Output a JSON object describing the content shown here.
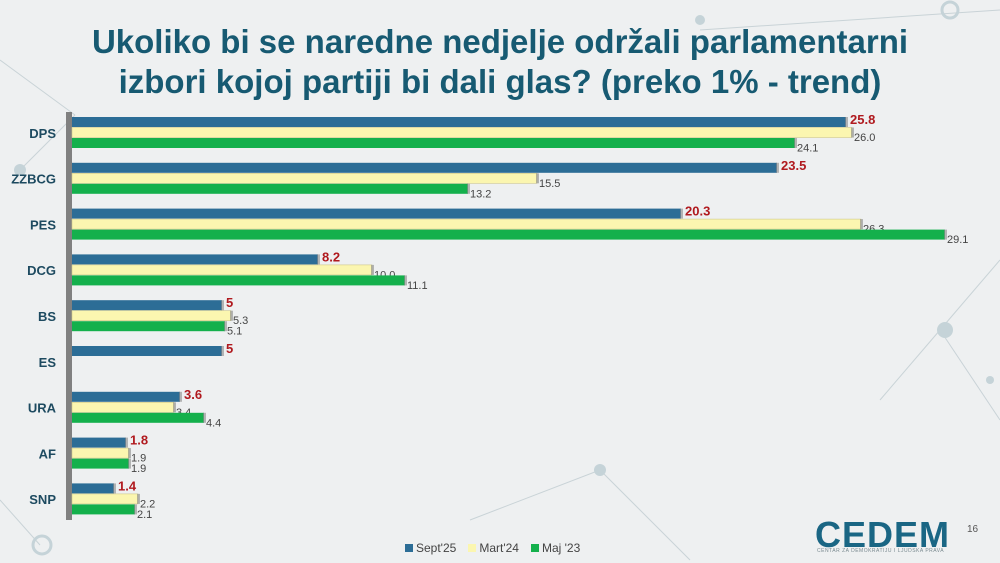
{
  "title_line1": "Ukoliko bi se naredne nedjelje održali parlamentarni",
  "title_line2": "izbori kojoj partiji bi dali glas? (preko 1% - trend)",
  "chart_data": {
    "type": "bar",
    "orientation": "horizontal",
    "categories": [
      "DPS",
      "ZZBCG",
      "PES",
      "DCG",
      "BS",
      "ES",
      "URA",
      "AF",
      "SNP"
    ],
    "series": [
      {
        "name": "Sept'25",
        "color": "#2c6d96",
        "values": [
          25.8,
          23.5,
          20.3,
          8.2,
          5,
          5,
          3.6,
          1.8,
          1.4
        ]
      },
      {
        "name": "Mart'24",
        "color": "#fbf6b0",
        "values": [
          26.0,
          15.5,
          26.3,
          10.0,
          5.3,
          null,
          3.4,
          1.9,
          2.2
        ]
      },
      {
        "name": "Maj '23",
        "color": "#14b04c",
        "values": [
          24.1,
          13.2,
          29.1,
          11.1,
          5.1,
          null,
          4.4,
          1.9,
          2.1
        ]
      }
    ],
    "value_labels": [
      [
        "25.8",
        "23.5",
        "20.3",
        "8.2",
        "5",
        "5",
        "3.6",
        "1.8",
        "1.4"
      ],
      [
        "26.0",
        "15.5",
        "26.3",
        "10.0",
        "5.3",
        null,
        "3.4",
        "1.9",
        "2.2"
      ],
      [
        "24.1",
        "13.2",
        "29.1",
        "11.1",
        "5.1",
        null,
        "4.4",
        "1.9",
        "2.1"
      ]
    ],
    "highlight_label_color": "#b0191e",
    "legend_position": "bottom",
    "grid": false,
    "xlim": [
      0,
      29.5
    ]
  },
  "logo": "CEDEM",
  "logo_subtitle": "CENTAR ZA DEMOKRATIJU I LJUDSKA PRAVA",
  "page_number": "16"
}
